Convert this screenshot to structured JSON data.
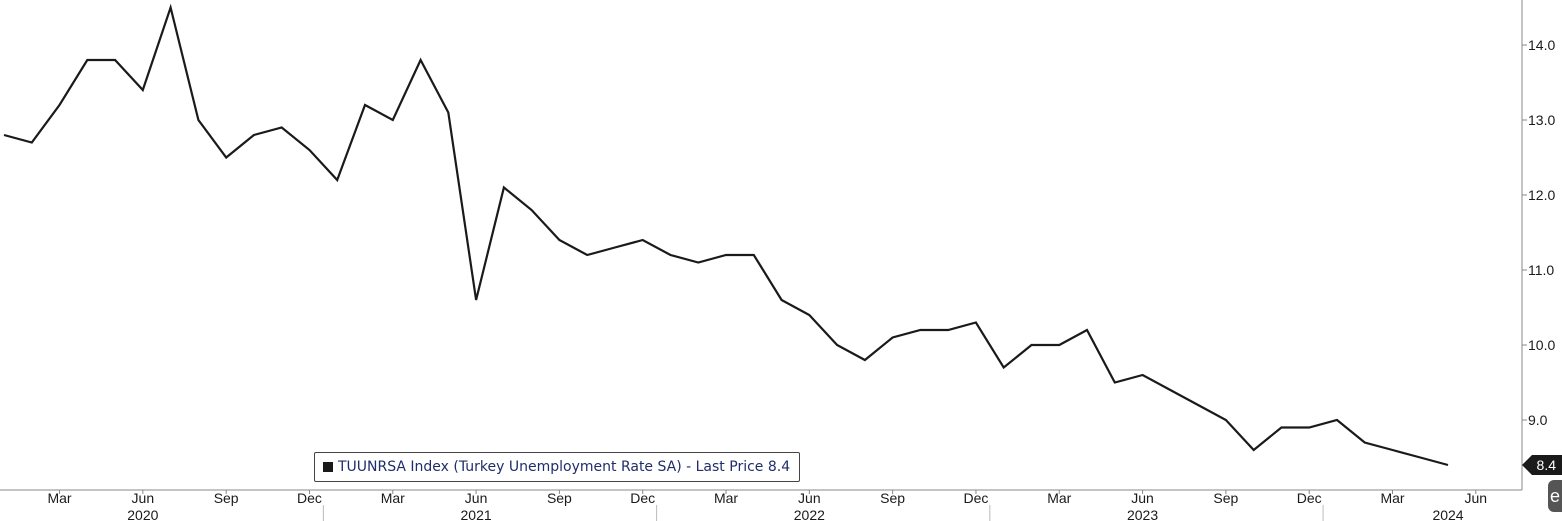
{
  "chart_data": {
    "type": "line",
    "title": "",
    "xlabel": "",
    "ylabel": "",
    "ylim": [
      8.0,
      14.6
    ],
    "y_ticks": [
      9.0,
      10.0,
      11.0,
      12.0,
      13.0,
      14.0
    ],
    "y_tick_labels": [
      "9.0",
      "10.0",
      "11.0",
      "12.0",
      "13.0",
      "14.0"
    ],
    "x_axis": {
      "start": "2020-01",
      "end": "2024-07",
      "month_ticks": [
        {
          "date": "2020-03",
          "label": "Mar"
        },
        {
          "date": "2020-06",
          "label": "Jun"
        },
        {
          "date": "2020-09",
          "label": "Sep"
        },
        {
          "date": "2020-12",
          "label": "Dec"
        },
        {
          "date": "2021-03",
          "label": "Mar"
        },
        {
          "date": "2021-06",
          "label": "Jun"
        },
        {
          "date": "2021-09",
          "label": "Sep"
        },
        {
          "date": "2021-12",
          "label": "Dec"
        },
        {
          "date": "2022-03",
          "label": "Mar"
        },
        {
          "date": "2022-06",
          "label": "Jun"
        },
        {
          "date": "2022-09",
          "label": "Sep"
        },
        {
          "date": "2022-12",
          "label": "Dec"
        },
        {
          "date": "2023-03",
          "label": "Mar"
        },
        {
          "date": "2023-06",
          "label": "Jun"
        },
        {
          "date": "2023-09",
          "label": "Sep"
        },
        {
          "date": "2023-12",
          "label": "Dec"
        },
        {
          "date": "2024-03",
          "label": "Mar"
        },
        {
          "date": "2024-06",
          "label": "Jun"
        }
      ],
      "year_labels": [
        {
          "label": "2020",
          "date": "2020-06"
        },
        {
          "label": "2021",
          "date": "2021-06"
        },
        {
          "label": "2022",
          "date": "2022-06"
        },
        {
          "label": "2023",
          "date": "2023-06"
        },
        {
          "label": "2024",
          "date": "2024-05"
        }
      ],
      "year_separators": [
        "2021-01",
        "2022-01",
        "2023-01",
        "2024-01"
      ]
    },
    "series": [
      {
        "name": "TUUNRSA Index (Turkey Unemployment Rate SA) - Last Price 8.4",
        "color": "#1a1a1a",
        "points": [
          {
            "x": "2020-01",
            "y": 12.8
          },
          {
            "x": "2020-02",
            "y": 12.7
          },
          {
            "x": "2020-03",
            "y": 13.2
          },
          {
            "x": "2020-04",
            "y": 13.8
          },
          {
            "x": "2020-05",
            "y": 13.8
          },
          {
            "x": "2020-06",
            "y": 13.4
          },
          {
            "x": "2020-07",
            "y": 14.5
          },
          {
            "x": "2020-08",
            "y": 13.0
          },
          {
            "x": "2020-09",
            "y": 12.5
          },
          {
            "x": "2020-10",
            "y": 12.8
          },
          {
            "x": "2020-11",
            "y": 12.9
          },
          {
            "x": "2020-12",
            "y": 12.6
          },
          {
            "x": "2021-01",
            "y": 12.2
          },
          {
            "x": "2021-02",
            "y": 13.2
          },
          {
            "x": "2021-03",
            "y": 13.0
          },
          {
            "x": "2021-04",
            "y": 13.8
          },
          {
            "x": "2021-05",
            "y": 13.1
          },
          {
            "x": "2021-06",
            "y": 10.6
          },
          {
            "x": "2021-07",
            "y": 12.1
          },
          {
            "x": "2021-08",
            "y": 11.8
          },
          {
            "x": "2021-09",
            "y": 11.4
          },
          {
            "x": "2021-10",
            "y": 11.2
          },
          {
            "x": "2021-11",
            "y": 11.3
          },
          {
            "x": "2021-12",
            "y": 11.4
          },
          {
            "x": "2022-01",
            "y": 11.2
          },
          {
            "x": "2022-02",
            "y": 11.1
          },
          {
            "x": "2022-03",
            "y": 11.2
          },
          {
            "x": "2022-04",
            "y": 11.2
          },
          {
            "x": "2022-05",
            "y": 10.6
          },
          {
            "x": "2022-06",
            "y": 10.4
          },
          {
            "x": "2022-07",
            "y": 10.0
          },
          {
            "x": "2022-08",
            "y": 9.8
          },
          {
            "x": "2022-09",
            "y": 10.1
          },
          {
            "x": "2022-10",
            "y": 10.2
          },
          {
            "x": "2022-11",
            "y": 10.2
          },
          {
            "x": "2022-12",
            "y": 10.3
          },
          {
            "x": "2023-01",
            "y": 9.7
          },
          {
            "x": "2023-02",
            "y": 10.0
          },
          {
            "x": "2023-03",
            "y": 10.0
          },
          {
            "x": "2023-04",
            "y": 10.2
          },
          {
            "x": "2023-05",
            "y": 9.5
          },
          {
            "x": "2023-06",
            "y": 9.6
          },
          {
            "x": "2023-07",
            "y": 9.4
          },
          {
            "x": "2023-08",
            "y": 9.2
          },
          {
            "x": "2023-09",
            "y": 9.0
          },
          {
            "x": "2023-10",
            "y": 8.6
          },
          {
            "x": "2023-11",
            "y": 8.9
          },
          {
            "x": "2023-12",
            "y": 8.9
          },
          {
            "x": "2024-01",
            "y": 9.0
          },
          {
            "x": "2024-02",
            "y": 8.7
          },
          {
            "x": "2024-03",
            "y": 8.6
          },
          {
            "x": "2024-04",
            "y": 8.5
          },
          {
            "x": "2024-05",
            "y": 8.4
          }
        ]
      }
    ],
    "legend": {
      "label": "TUUNRSA Index (Turkey Unemployment Rate SA) - Last Price 8.4",
      "placement": "bottom-left"
    },
    "last_value_label": "8.4",
    "grid": false,
    "colors": {
      "line": "#1a1a1a",
      "legend_text": "#1f2d6b",
      "axis": "#888888"
    }
  },
  "corner_logo_text": "e"
}
